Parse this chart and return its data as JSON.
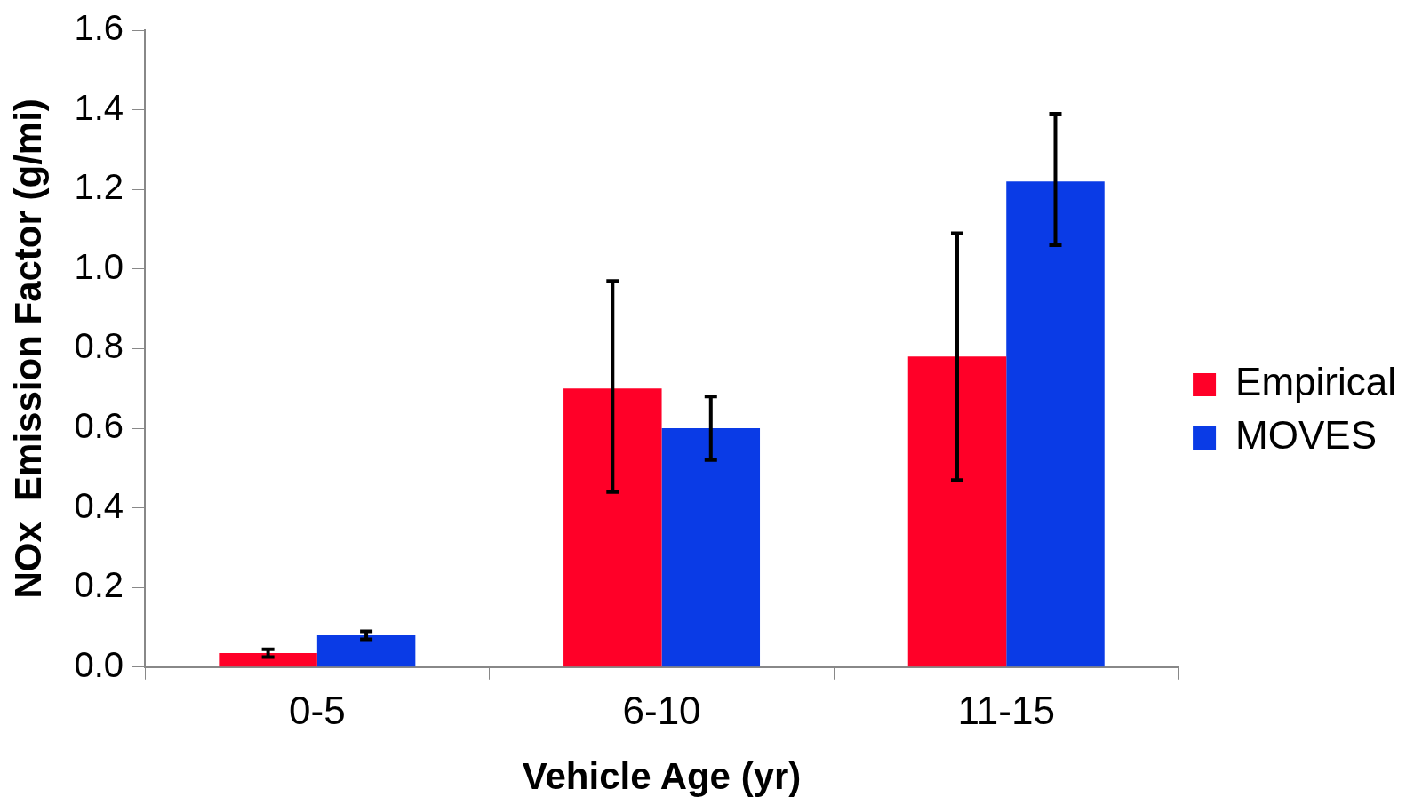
{
  "chart_data": {
    "type": "bar",
    "xlabel": "Vehicle Age (yr)",
    "ylabel": "NOx  Emission Factor (g/mi)",
    "categories": [
      "0-5",
      "6-10",
      "11-15"
    ],
    "series": [
      {
        "name": "Empirical",
        "color": "#ff0028",
        "values": [
          0.035,
          0.7,
          0.78
        ],
        "errors": [
          [
            0.025,
            0.045
          ],
          [
            0.44,
            0.97
          ],
          [
            0.47,
            1.09
          ]
        ]
      },
      {
        "name": "MOVES",
        "color": "#0a3be6",
        "values": [
          0.08,
          0.6,
          1.22
        ],
        "errors": [
          [
            0.07,
            0.09
          ],
          [
            0.52,
            0.68
          ],
          [
            1.06,
            1.39
          ]
        ]
      }
    ],
    "ylim": [
      0,
      1.6
    ],
    "yticks": [
      {
        "value": 0,
        "label": "0.0"
      },
      {
        "value": 0.2,
        "label": "0.2"
      },
      {
        "value": 0.4,
        "label": "0.4"
      },
      {
        "value": 0.6,
        "label": "0.6"
      },
      {
        "value": 0.8,
        "label": "0.8"
      },
      {
        "value": 1,
        "label": "1.0"
      },
      {
        "value": 1.2,
        "label": "1.2"
      },
      {
        "value": 1.4,
        "label": "1.4"
      },
      {
        "value": 1.6,
        "label": "1.6"
      }
    ],
    "grid": false,
    "legend": "right"
  }
}
